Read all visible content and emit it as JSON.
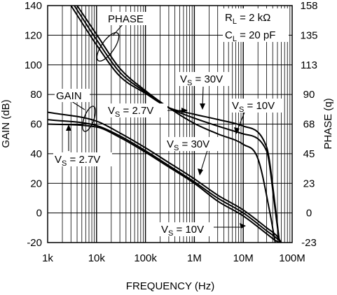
{
  "chart_data": {
    "type": "line",
    "title": "",
    "xlabel": "FREQUENCY (Hz)",
    "ylabel": "GAIN (dB)",
    "y2label": "PHASE (q)",
    "x_scale": "log",
    "xlim": [
      1000,
      100000000
    ],
    "ylim": [
      -20,
      140
    ],
    "y2lim": [
      -23,
      158
    ],
    "x_tick_labels": [
      "1k",
      "10k",
      "100k",
      "1M",
      "10M",
      "100M"
    ],
    "y_tick_labels": [
      "-20",
      "0",
      "20",
      "40",
      "60",
      "80",
      "100",
      "120",
      "140"
    ],
    "y2_tick_labels": [
      "-23",
      "0",
      "23",
      "45",
      "68",
      "90",
      "113",
      "135",
      "158"
    ],
    "grid": true,
    "conditions": {
      "rl_prefix": "R",
      "rl_sub": "L",
      "rl_value": " = 2 kΩ",
      "cl_prefix": "C",
      "cl_sub": "L",
      "cl_value": " = 20 pF"
    },
    "annotations": {
      "phase": "PHASE",
      "gain": "GAIN",
      "vs_prefix": "V",
      "vs_sub": "S",
      "vs_30": " = 30V",
      "vs_10": " = 10V",
      "vs_2_7_a": " = 2.7V",
      "vs_2_7_b": " = 2.7V",
      "vs_30_gain": " = 30V",
      "vs_10_gain": " = 10V"
    },
    "series": [
      {
        "group": "gain",
        "x": [
          1000,
          10000,
          30000,
          100000,
          300000,
          1000000,
          3000000,
          10000000,
          30000000,
          50000000,
          60000000
        ],
        "y": [
          68.0,
          62.0,
          54.0,
          44.0,
          34.0,
          23.0,
          12.0,
          2.0,
          -10.0,
          -16.0,
          -20.0
        ]
      },
      {
        "group": "gain",
        "x": [
          1000,
          10000,
          30000,
          100000,
          300000,
          1000000,
          3000000,
          10000000,
          30000000,
          50000000,
          60000000
        ],
        "y": [
          63.0,
          59.0,
          52.0,
          42.0,
          32.0,
          21.0,
          10.0,
          0.0,
          -12.0,
          -17.5,
          -20.0
        ]
      },
      {
        "group": "gain",
        "x": [
          1000,
          10000,
          30000,
          100000,
          300000,
          1000000,
          3000000,
          10000000,
          30000000,
          45000000,
          55000000
        ],
        "y": [
          60.0,
          58.0,
          51.0,
          41.0,
          31.0,
          20.0,
          8.0,
          -2.0,
          -14.0,
          -18.5,
          -20.0
        ]
      },
      {
        "group": "phase",
        "x": [
          3000,
          10000,
          30000,
          100000,
          300000,
          1000000,
          3000000,
          10000000,
          30000000,
          45000000,
          55000000
        ],
        "y": [
          158.0,
          128.0,
          104.0,
          91.0,
          80.0,
          75.0,
          71.0,
          66.0,
          50.0,
          5.0,
          -23.0
        ]
      },
      {
        "group": "phase",
        "x": [
          3500,
          10000,
          30000,
          100000,
          300000,
          1000000,
          3000000,
          10000000,
          30000000,
          45000000,
          55000000
        ],
        "y": [
          158.0,
          132.0,
          107.0,
          92.0,
          80.0,
          72.0,
          66.0,
          60.0,
          47.0,
          2.0,
          -23.0
        ]
      },
      {
        "group": "phase",
        "x": [
          4000,
          10000,
          30000,
          100000,
          300000,
          1000000,
          3000000,
          10000000,
          20000000,
          35000000,
          45000000
        ],
        "y": [
          158.0,
          136.0,
          110.0,
          93.0,
          80.0,
          68.0,
          60.0,
          52.0,
          41.0,
          0.0,
          -23.0
        ]
      }
    ]
  }
}
